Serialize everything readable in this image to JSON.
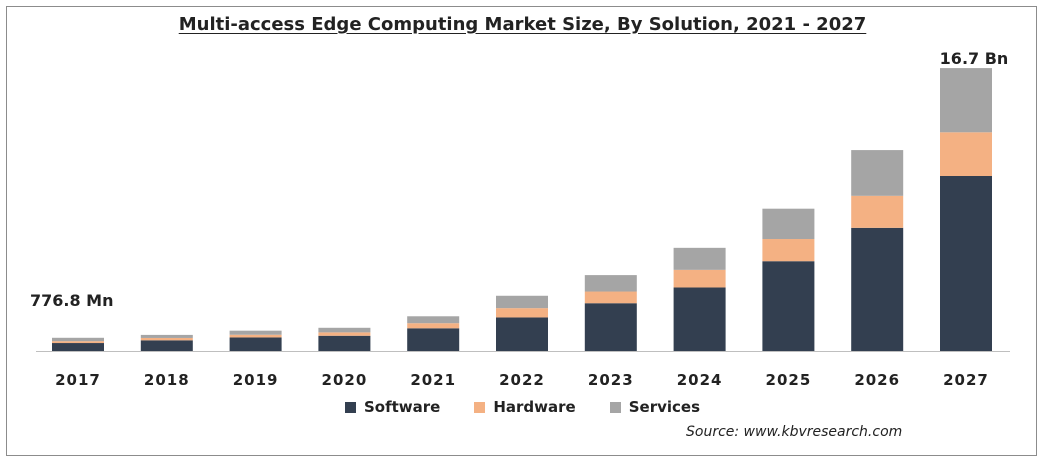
{
  "chart_data": {
    "type": "bar",
    "stacked": true,
    "title": "Multi-access Edge Computing Market Size, By Solution, 2021 - 2027",
    "categories": [
      "2017",
      "2018",
      "2019",
      "2020",
      "2021",
      "2022",
      "2023",
      "2024",
      "2025",
      "2026",
      "2027"
    ],
    "series": [
      {
        "name": "Software",
        "color": "#333f50",
        "values": [
          0.47,
          0.63,
          0.8,
          0.9,
          1.34,
          1.98,
          2.82,
          3.75,
          5.3,
          7.27,
          10.33
        ]
      },
      {
        "name": "Hardware",
        "color": "#f4b183",
        "values": [
          0.11,
          0.14,
          0.16,
          0.2,
          0.3,
          0.55,
          0.69,
          1.04,
          1.31,
          1.89,
          2.58
        ]
      },
      {
        "name": "Services",
        "color": "#a5a5a5",
        "values": [
          0.2,
          0.18,
          0.24,
          0.27,
          0.41,
          0.73,
          0.97,
          1.3,
          1.79,
          2.7,
          3.79
        ]
      }
    ],
    "ylim": [
      0,
      17
    ],
    "grid": false,
    "legend": "bottom",
    "annotations": [
      {
        "text": "776.8 Mn",
        "category": "2017"
      },
      {
        "text": "16.7 Bn",
        "category": "2027"
      }
    ],
    "source": "Source: www.kbvresearch.com"
  }
}
